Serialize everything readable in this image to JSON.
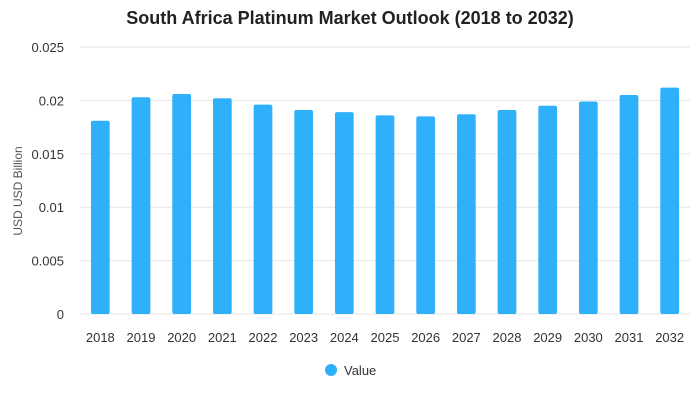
{
  "chart_data": {
    "type": "bar",
    "title": "South Africa Platinum Market Outlook (2018 to 2032)",
    "xlabel": "",
    "ylabel": "USD USD Billion",
    "categories": [
      "2018",
      "2019",
      "2020",
      "2021",
      "2022",
      "2023",
      "2024",
      "2025",
      "2026",
      "2027",
      "2028",
      "2029",
      "2030",
      "2031",
      "2032"
    ],
    "series": [
      {
        "name": "Value",
        "color": "#2EB0FA",
        "values": [
          0.0181,
          0.0203,
          0.0206,
          0.0202,
          0.0196,
          0.0191,
          0.0189,
          0.0186,
          0.0185,
          0.0187,
          0.0191,
          0.0195,
          0.0199,
          0.0205,
          0.0212
        ]
      }
    ],
    "ylim": [
      0,
      0.025
    ],
    "yticks": [
      "0",
      "0.005",
      "0.01",
      "0.015",
      "0.02",
      "0.025"
    ],
    "grid": true,
    "legend_position": "bottom"
  }
}
